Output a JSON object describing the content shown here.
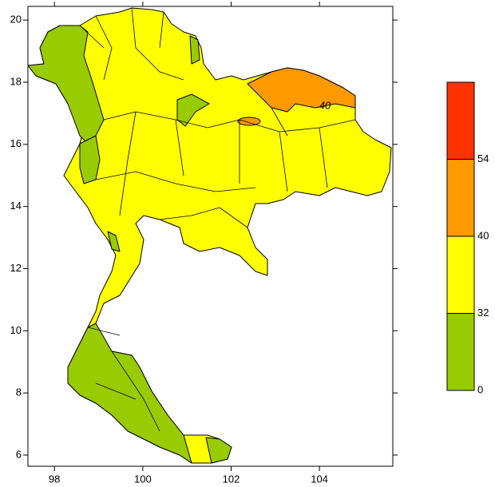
{
  "chart_data": {
    "type": "map",
    "xlim": [
      97.4,
      105.66
    ],
    "ylim": [
      5.64,
      20.44
    ],
    "xticks": [
      98,
      100,
      102,
      104
    ],
    "yticks": [
      6,
      8,
      10,
      12,
      14,
      16,
      18,
      20
    ],
    "levels": [
      0,
      32,
      40,
      54
    ],
    "colors": [
      "#99cc00",
      "#ffff00",
      "#ff9900",
      "#ff3300"
    ],
    "contour_label": 40
  }
}
